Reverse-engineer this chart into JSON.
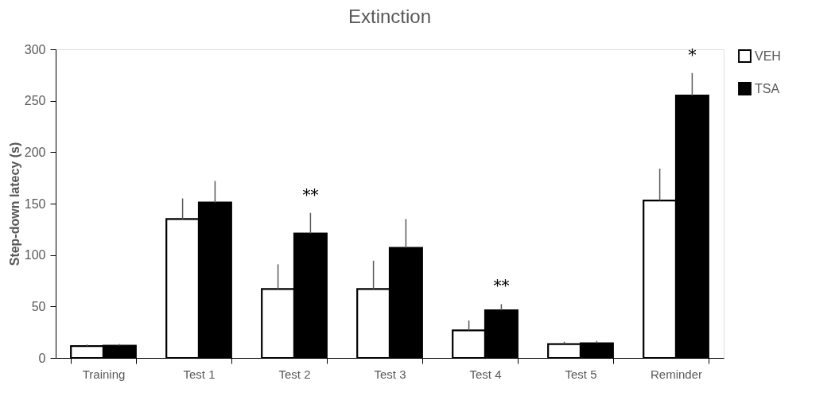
{
  "chart_data": {
    "type": "bar",
    "title": "Extinction",
    "ylabel": "Step-down latecy (s)",
    "categories": [
      "Training",
      "Test 1",
      "Test 2",
      "Test 3",
      "Test 4",
      "Test 5",
      "Reminder"
    ],
    "series": [
      {
        "name": "VEH",
        "color": "#ffffff",
        "values": [
          11.5,
          135,
          67,
          67,
          26.7,
          13.5,
          153
        ],
        "errors": [
          [
            11.5,
            13
          ],
          [
            135,
            155
          ],
          [
            67,
            91
          ],
          [
            67,
            94.5
          ],
          [
            26.7,
            36.4
          ],
          [
            13.5,
            15.7
          ],
          [
            153,
            184
          ]
        ]
      },
      {
        "name": "TSA",
        "color": "#000000",
        "values": [
          12,
          151,
          121,
          107,
          46.3,
          14.3,
          255
        ],
        "value_labels": [
          null,
          null,
          "**",
          null,
          "**",
          null,
          "*"
        ],
        "errors": [
          [
            12,
            13.5
          ],
          [
            151,
            172
          ],
          [
            121,
            141
          ],
          [
            107,
            135
          ],
          [
            46.3,
            52.3
          ],
          [
            14.3,
            16.5
          ],
          [
            255,
            277
          ]
        ]
      }
    ],
    "ylim": [
      0,
      300
    ],
    "yticks": [
      0,
      50,
      100,
      150,
      200,
      250,
      300
    ],
    "grid": false,
    "legend": "right"
  }
}
